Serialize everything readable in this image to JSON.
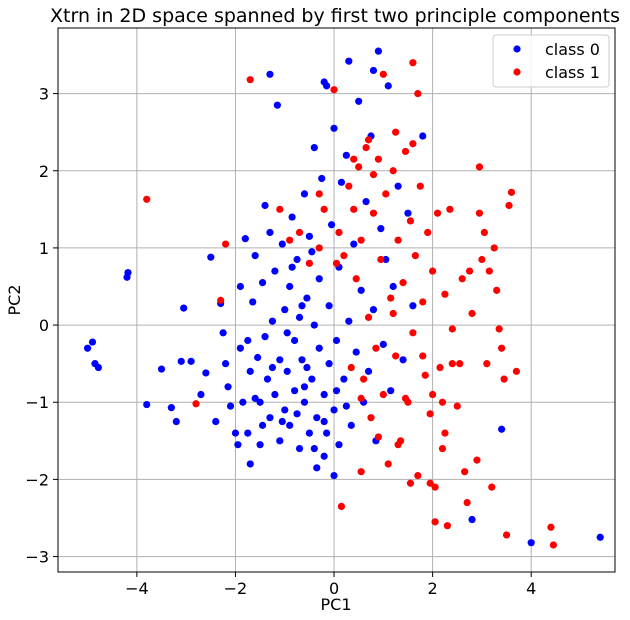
{
  "chart_data": {
    "type": "scatter",
    "title": "Xtrn in 2D space spanned by first two principle components",
    "xlabel": "PC1",
    "ylabel": "PC2",
    "xlim": [
      -5.6,
      5.7
    ],
    "ylim": [
      -3.2,
      3.85
    ],
    "xticks": [
      -4,
      -2,
      0,
      2,
      4
    ],
    "yticks": [
      -3,
      -2,
      -1,
      0,
      1,
      2,
      3
    ],
    "xtick_labels": [
      "−4",
      "−2",
      "0",
      "2",
      "4"
    ],
    "ytick_labels": [
      "−3",
      "−2",
      "−1",
      "0",
      "1",
      "2",
      "3"
    ],
    "grid": true,
    "legend_position": "top-right",
    "series": [
      {
        "name": "class 0",
        "color": "#0000ff",
        "points": [
          [
            -5.0,
            -0.3
          ],
          [
            -4.9,
            -0.22
          ],
          [
            -4.85,
            -0.5
          ],
          [
            -4.78,
            -0.55
          ],
          [
            -4.2,
            0.62
          ],
          [
            -4.18,
            0.68
          ],
          [
            -3.8,
            -1.03
          ],
          [
            -3.5,
            -0.57
          ],
          [
            -3.3,
            -1.07
          ],
          [
            -3.2,
            -1.25
          ],
          [
            -3.1,
            -0.47
          ],
          [
            -3.05,
            0.22
          ],
          [
            -2.9,
            -0.47
          ],
          [
            -2.7,
            -0.9
          ],
          [
            -2.6,
            -0.62
          ],
          [
            -2.5,
            0.88
          ],
          [
            -2.4,
            -1.25
          ],
          [
            -2.3,
            0.28
          ],
          [
            -2.25,
            -0.1
          ],
          [
            -2.2,
            -0.5
          ],
          [
            -2.15,
            -0.8
          ],
          [
            -2.1,
            -1.05
          ],
          [
            -2.0,
            -1.4
          ],
          [
            -1.95,
            -1.55
          ],
          [
            -1.9,
            0.5
          ],
          [
            -1.9,
            -0.3
          ],
          [
            -1.85,
            -1.0
          ],
          [
            -1.8,
            1.12
          ],
          [
            -1.75,
            -0.2
          ],
          [
            -1.7,
            -0.6
          ],
          [
            -1.7,
            -1.8
          ],
          [
            -1.65,
            0.3
          ],
          [
            -1.6,
            0.9
          ],
          [
            -1.55,
            -0.42
          ],
          [
            -1.5,
            -1.0
          ],
          [
            -1.5,
            -1.55
          ],
          [
            -1.45,
            0.55
          ],
          [
            -1.4,
            1.55
          ],
          [
            -1.4,
            -0.15
          ],
          [
            -1.35,
            -0.7
          ],
          [
            -1.3,
            -1.2
          ],
          [
            -1.3,
            1.2
          ],
          [
            -1.25,
            0.05
          ],
          [
            -1.2,
            -0.9
          ],
          [
            -1.2,
            0.7
          ],
          [
            -1.15,
            2.85
          ],
          [
            -1.1,
            -0.45
          ],
          [
            -1.1,
            -1.5
          ],
          [
            -1.05,
            1.05
          ],
          [
            -1.0,
            0.2
          ],
          [
            -1.0,
            -1.1
          ],
          [
            -0.95,
            -0.6
          ],
          [
            -0.9,
            0.5
          ],
          [
            -0.9,
            -1.3
          ],
          [
            -0.85,
            1.4
          ],
          [
            -0.8,
            -0.2
          ],
          [
            -0.8,
            -0.85
          ],
          [
            -0.75,
            0.85
          ],
          [
            -0.7,
            -1.6
          ],
          [
            -0.7,
            0.1
          ],
          [
            -0.65,
            -0.45
          ],
          [
            -0.6,
            1.7
          ],
          [
            -0.6,
            -1.0
          ],
          [
            -0.55,
            0.35
          ],
          [
            -0.5,
            -1.4
          ],
          [
            -0.5,
            1.15
          ],
          [
            -0.45,
            -0.7
          ],
          [
            -0.4,
            0.0
          ],
          [
            -0.4,
            2.3
          ],
          [
            -0.35,
            -1.2
          ],
          [
            -0.3,
            0.6
          ],
          [
            -0.3,
            -0.3
          ],
          [
            -0.25,
            1.9
          ],
          [
            -0.2,
            -0.9
          ],
          [
            -0.2,
            -1.7
          ],
          [
            -0.15,
            3.1
          ],
          [
            -0.1,
            0.25
          ],
          [
            -0.1,
            -0.5
          ],
          [
            -0.05,
            1.3
          ],
          [
            0.0,
            -1.1
          ],
          [
            0.0,
            2.55
          ],
          [
            0.05,
            -0.2
          ],
          [
            0.1,
            0.75
          ],
          [
            0.1,
            -1.55
          ],
          [
            0.15,
            1.85
          ],
          [
            0.2,
            -0.7
          ],
          [
            0.25,
            2.2
          ],
          [
            0.3,
            0.05
          ],
          [
            0.3,
            3.42
          ],
          [
            0.35,
            -1.3
          ],
          [
            0.4,
            1.05
          ],
          [
            0.45,
            -0.35
          ],
          [
            0.5,
            2.9
          ],
          [
            0.55,
            0.45
          ],
          [
            0.6,
            -1.0
          ],
          [
            0.65,
            1.6
          ],
          [
            0.7,
            -0.6
          ],
          [
            0.75,
            2.45
          ],
          [
            0.8,
            0.2
          ],
          [
            0.85,
            -1.5
          ],
          [
            0.9,
            3.55
          ],
          [
            0.95,
            1.25
          ],
          [
            1.0,
            -0.25
          ],
          [
            1.05,
            0.85
          ],
          [
            1.1,
            3.1
          ],
          [
            1.15,
            -0.85
          ],
          [
            1.2,
            0.5
          ],
          [
            1.3,
            1.8
          ],
          [
            1.4,
            -0.45
          ],
          [
            1.5,
            1.45
          ],
          [
            1.6,
            0.25
          ],
          [
            1.8,
            2.45
          ],
          [
            -1.3,
            3.25
          ],
          [
            -0.2,
            3.15
          ],
          [
            0.8,
            3.3
          ],
          [
            2.8,
            -2.52
          ],
          [
            3.4,
            -1.35
          ],
          [
            4.0,
            -2.82
          ],
          [
            5.4,
            -2.75
          ],
          [
            -1.75,
            -1.4
          ],
          [
            -1.6,
            -0.95
          ],
          [
            -1.45,
            -1.3
          ],
          [
            -1.25,
            -0.55
          ],
          [
            -1.05,
            -1.25
          ],
          [
            -0.95,
            -0.1
          ],
          [
            -0.75,
            -1.15
          ],
          [
            -0.55,
            -0.55
          ],
          [
            -0.35,
            -1.85
          ],
          [
            -0.15,
            -1.4
          ],
          [
            0.05,
            -0.85
          ],
          [
            0.25,
            -1.05
          ],
          [
            -0.6,
            -0.8
          ],
          [
            -0.4,
            -1.6
          ],
          [
            -0.2,
            -1.25
          ],
          [
            0.0,
            -1.95
          ],
          [
            -0.85,
            0.75
          ],
          [
            -0.65,
            0.25
          ],
          [
            -0.45,
            0.95
          ]
        ]
      },
      {
        "name": "class 1",
        "color": "#ff0000",
        "points": [
          [
            -3.8,
            1.63
          ],
          [
            -2.8,
            -1.02
          ],
          [
            -2.3,
            0.32
          ],
          [
            -2.2,
            1.05
          ],
          [
            -1.7,
            3.18
          ],
          [
            -1.1,
            1.5
          ],
          [
            -0.7,
            1.2
          ],
          [
            -0.5,
            0.8
          ],
          [
            -0.3,
            1.0
          ],
          [
            -0.2,
            1.5
          ],
          [
            0.0,
            3.05
          ],
          [
            0.1,
            1.2
          ],
          [
            0.2,
            0.9
          ],
          [
            0.3,
            1.8
          ],
          [
            0.4,
            1.5
          ],
          [
            0.45,
            0.6
          ],
          [
            0.5,
            2.05
          ],
          [
            0.55,
            1.1
          ],
          [
            0.6,
            -0.7
          ],
          [
            0.65,
            2.3
          ],
          [
            0.7,
            0.1
          ],
          [
            0.75,
            -1.2
          ],
          [
            0.8,
            1.45
          ],
          [
            0.85,
            -0.3
          ],
          [
            0.9,
            2.15
          ],
          [
            0.95,
            0.85
          ],
          [
            1.0,
            -0.9
          ],
          [
            1.05,
            1.7
          ],
          [
            1.1,
            -1.8
          ],
          [
            1.15,
            0.35
          ],
          [
            1.2,
            2.0
          ],
          [
            1.25,
            -0.4
          ],
          [
            1.3,
            1.1
          ],
          [
            1.35,
            -1.5
          ],
          [
            1.4,
            0.55
          ],
          [
            1.45,
            2.25
          ],
          [
            1.5,
            -1.0
          ],
          [
            1.55,
            1.35
          ],
          [
            1.6,
            -0.1
          ],
          [
            1.65,
            0.9
          ],
          [
            1.7,
            -1.95
          ],
          [
            1.75,
            1.8
          ],
          [
            1.8,
            0.3
          ],
          [
            1.85,
            -0.65
          ],
          [
            1.9,
            1.2
          ],
          [
            1.95,
            -1.15
          ],
          [
            2.0,
            0.7
          ],
          [
            2.05,
            -2.1
          ],
          [
            2.1,
            1.45
          ],
          [
            2.15,
            -0.55
          ],
          [
            2.2,
            -1.6
          ],
          [
            2.25,
            0.4
          ],
          [
            2.3,
            -2.6
          ],
          [
            2.4,
            -0.05
          ],
          [
            2.5,
            -1.05
          ],
          [
            2.6,
            0.6
          ],
          [
            2.7,
            -2.3
          ],
          [
            2.8,
            0.15
          ],
          [
            2.9,
            -1.75
          ],
          [
            3.0,
            0.85
          ],
          [
            3.1,
            -0.5
          ],
          [
            3.2,
            -2.1
          ],
          [
            3.3,
            0.45
          ],
          [
            3.4,
            -0.3
          ],
          [
            3.5,
            -2.72
          ],
          [
            3.6,
            1.72
          ],
          [
            4.4,
            -2.62
          ],
          [
            4.45,
            -2.85
          ],
          [
            2.95,
            2.05
          ],
          [
            1.6,
            3.4
          ],
          [
            1.7,
            3.0
          ],
          [
            1.0,
            3.25
          ],
          [
            0.05,
            0.8
          ],
          [
            0.35,
            -0.55
          ],
          [
            0.55,
            -1.9
          ],
          [
            0.15,
            -2.35
          ],
          [
            0.9,
            -1.45
          ],
          [
            1.3,
            -1.55
          ],
          [
            1.55,
            -2.05
          ],
          [
            1.95,
            -2.05
          ],
          [
            2.25,
            -1.4
          ],
          [
            2.0,
            -0.9
          ],
          [
            2.4,
            -0.5
          ],
          [
            2.55,
            -0.5
          ],
          [
            2.75,
            0.7
          ],
          [
            2.95,
            1.45
          ],
          [
            3.05,
            1.2
          ],
          [
            3.15,
            0.7
          ],
          [
            3.25,
            1.0
          ],
          [
            3.35,
            -0.05
          ],
          [
            3.45,
            -0.7
          ],
          [
            3.55,
            1.55
          ],
          [
            2.35,
            1.5
          ],
          [
            1.6,
            2.35
          ],
          [
            1.25,
            2.5
          ],
          [
            0.7,
            2.4
          ],
          [
            0.4,
            2.15
          ],
          [
            0.8,
            1.95
          ],
          [
            1.2,
            0.15
          ],
          [
            1.8,
            -0.4
          ],
          [
            2.2,
            -1.0
          ],
          [
            -0.3,
            1.7
          ],
          [
            -0.9,
            1.1
          ],
          [
            0.55,
            -0.95
          ],
          [
            1.45,
            -0.95
          ],
          [
            2.65,
            -1.9
          ],
          [
            3.7,
            -0.6
          ],
          [
            2.05,
            -2.55
          ]
        ]
      }
    ]
  }
}
